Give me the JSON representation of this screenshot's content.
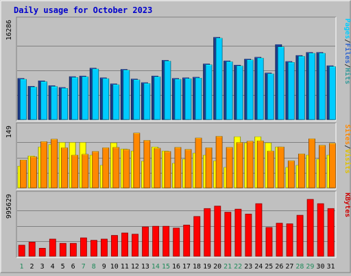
{
  "chart_data": {
    "type": "bar",
    "title": "Daily usage for October 2023",
    "categories": [
      "1",
      "2",
      "3",
      "4",
      "5",
      "6",
      "7",
      "8",
      "9",
      "10",
      "11",
      "12",
      "13",
      "14",
      "15",
      "16",
      "17",
      "18",
      "19",
      "20",
      "21",
      "22",
      "23",
      "24",
      "25",
      "26",
      "27",
      "28",
      "29",
      "30",
      "31"
    ],
    "weekend_days": [
      "1",
      "7",
      "8",
      "14",
      "15",
      "21",
      "22",
      "28",
      "29"
    ],
    "panels": [
      {
        "name": "hits-files-pages",
        "ymax_label": "16286",
        "ymax": 16286,
        "axis_labels": [
          "Pages",
          "/",
          "Files",
          "/",
          "Hits"
        ],
        "axis_label_colors": [
          "#00ccff",
          "#333333",
          "#3366cc",
          "#333333",
          "#339999"
        ],
        "series": [
          {
            "name": "Hits",
            "color": "#1d3b8a",
            "values": [
              6800,
              5500,
              6400,
              5600,
              5300,
              7100,
              7200,
              8500,
              6900,
              5900,
              8300,
              6700,
              6100,
              7200,
              9800,
              6800,
              6900,
              7000,
              9200,
              13600,
              9700,
              9000,
              10000,
              10300,
              7700,
              12400,
              9600,
              10600,
              11100,
              11100,
              8900
            ]
          },
          {
            "name": "Pages",
            "color": "#00ccff",
            "values": [
              6650,
              5350,
              6250,
              5450,
              5150,
              6950,
              7050,
              8350,
              6750,
              5750,
              8150,
              6550,
              5950,
              7050,
              9650,
              6650,
              6750,
              6850,
              9050,
              13450,
              9550,
              8850,
              9850,
              10150,
              7550,
              12000,
              9450,
              10450,
              10950,
              10950,
              8750
            ]
          }
        ]
      },
      {
        "name": "visits-sites",
        "ymax_label": "149",
        "ymax": 149,
        "axis_labels": [
          "Sites",
          "/",
          "Visits"
        ],
        "axis_label_colors": [
          "#ff8800",
          "#333333",
          "#e0c000"
        ],
        "series": [
          {
            "name": "Visits",
            "color": "#ffff00",
            "values": [
              53,
              78,
              100,
              106,
              111,
              111,
              111,
              80,
              55,
              110,
              95,
              90,
              65,
              100,
              90,
              60,
              70,
              85,
              80,
              66,
              50,
              125,
              110,
              125,
              110,
              100,
              50,
              55,
              80,
              70,
              80
            ]
          },
          {
            "name": "Sites",
            "color": "#ff8800",
            "values": [
              68,
              76,
              113,
              119,
              98,
              80,
              82,
              89,
              98,
              99,
              94,
              134,
              116,
              97,
              89,
              99,
              94,
              122,
              98,
              126,
              99,
              111,
              114,
              115,
              90,
              100,
              66,
              83,
              120,
              104,
              109
            ]
          }
        ]
      },
      {
        "name": "kbytes",
        "ymax_label": "995629",
        "ymax": 995629,
        "axis_labels": [
          "KBytes"
        ],
        "axis_label_colors": [
          "#cc0000"
        ],
        "series": [
          {
            "name": "KBytes",
            "color": "#ff0000",
            "values": [
              180000,
              230000,
              130000,
              280000,
              210000,
              210000,
              300000,
              260000,
              280000,
              340000,
              380000,
              360000,
              480000,
              490000,
              490000,
              460000,
              510000,
              650000,
              780000,
              820000,
              720000,
              770000,
              690000,
              860000,
              470000,
              540000,
              530000,
              670000,
              930000,
              860000,
              780000
            ]
          }
        ]
      }
    ]
  }
}
